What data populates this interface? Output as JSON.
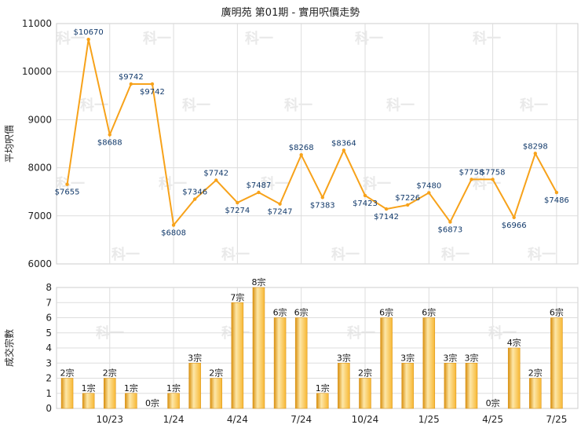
{
  "title": "廣明苑 第01期 - 實用呎價走勢",
  "watermark": "科一",
  "colors": {
    "line": "#f7a21a",
    "bar_light": "#fde7a8",
    "bar_mid": "#f7b733",
    "bar_dark": "#d9900f",
    "grid": "#dddddd"
  },
  "chart_data": [
    {
      "type": "line",
      "ylabel": "平均呎價",
      "ylim": [
        6000,
        11000
      ],
      "yticks": [
        6000,
        7000,
        8000,
        9000,
        10000,
        11000
      ],
      "values": [
        7655,
        10670,
        8688,
        9742,
        9742,
        6808,
        7346,
        7742,
        7274,
        7487,
        7247,
        8268,
        7383,
        8364,
        7423,
        7142,
        7226,
        7480,
        6873,
        7758,
        7758,
        6966,
        8298,
        7486
      ],
      "labels": [
        "$7655",
        "$10670",
        "$8688",
        "$9742",
        "$9742",
        "$6808",
        "$7346",
        "$7742",
        "$7274",
        "$7487",
        "$7247",
        "$8268",
        "$7383",
        "$8364",
        "$7423",
        "$7142",
        "$7226",
        "$7480",
        "$6873",
        "$7758",
        "$7758",
        "$6966",
        "$8298",
        "$7486"
      ],
      "grid": true
    },
    {
      "type": "bar",
      "ylabel": "成交宗數",
      "ylim": [
        0,
        8
      ],
      "yticks": [
        0,
        1,
        2,
        3,
        4,
        5,
        6,
        7,
        8
      ],
      "values": [
        2,
        1,
        2,
        1,
        0,
        1,
        3,
        2,
        7,
        8,
        6,
        6,
        1,
        3,
        2,
        6,
        3,
        6,
        3,
        3,
        0,
        4,
        2,
        6
      ],
      "labels": [
        "2宗",
        "1宗",
        "2宗",
        "1宗",
        "0宗",
        "1宗",
        "3宗",
        "2宗",
        "7宗",
        "8宗",
        "6宗",
        "6宗",
        "1宗",
        "3宗",
        "2宗",
        "6宗",
        "3宗",
        "6宗",
        "3宗",
        "3宗",
        "0宗",
        "4宗",
        "2宗",
        "6宗"
      ],
      "xtick_labels": [
        "10/23",
        "1/24",
        "4/24",
        "7/24",
        "10/24",
        "1/25",
        "4/25",
        "7/25"
      ],
      "grid": true
    }
  ]
}
